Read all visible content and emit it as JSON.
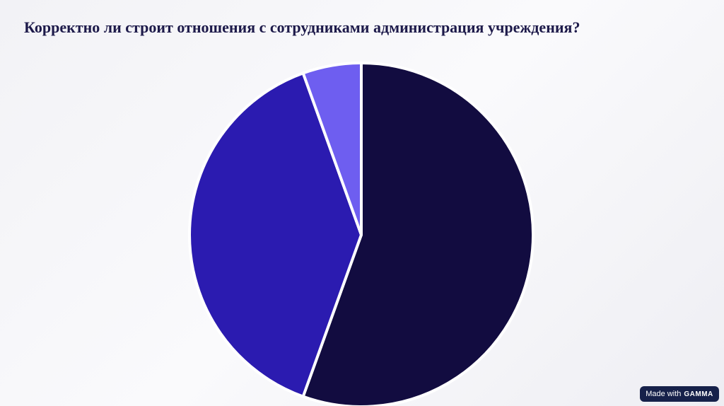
{
  "chart_data": {
    "type": "pie",
    "title": "Корректно ли строит отношения с сотрудниками администрация учреждения?",
    "values": [
      55.5,
      39,
      5.5
    ],
    "colors": [
      "#120c40",
      "#2b1bb0",
      "#6e5ef0"
    ]
  },
  "badge": {
    "text": "Made with",
    "brand": "GAMMA"
  }
}
